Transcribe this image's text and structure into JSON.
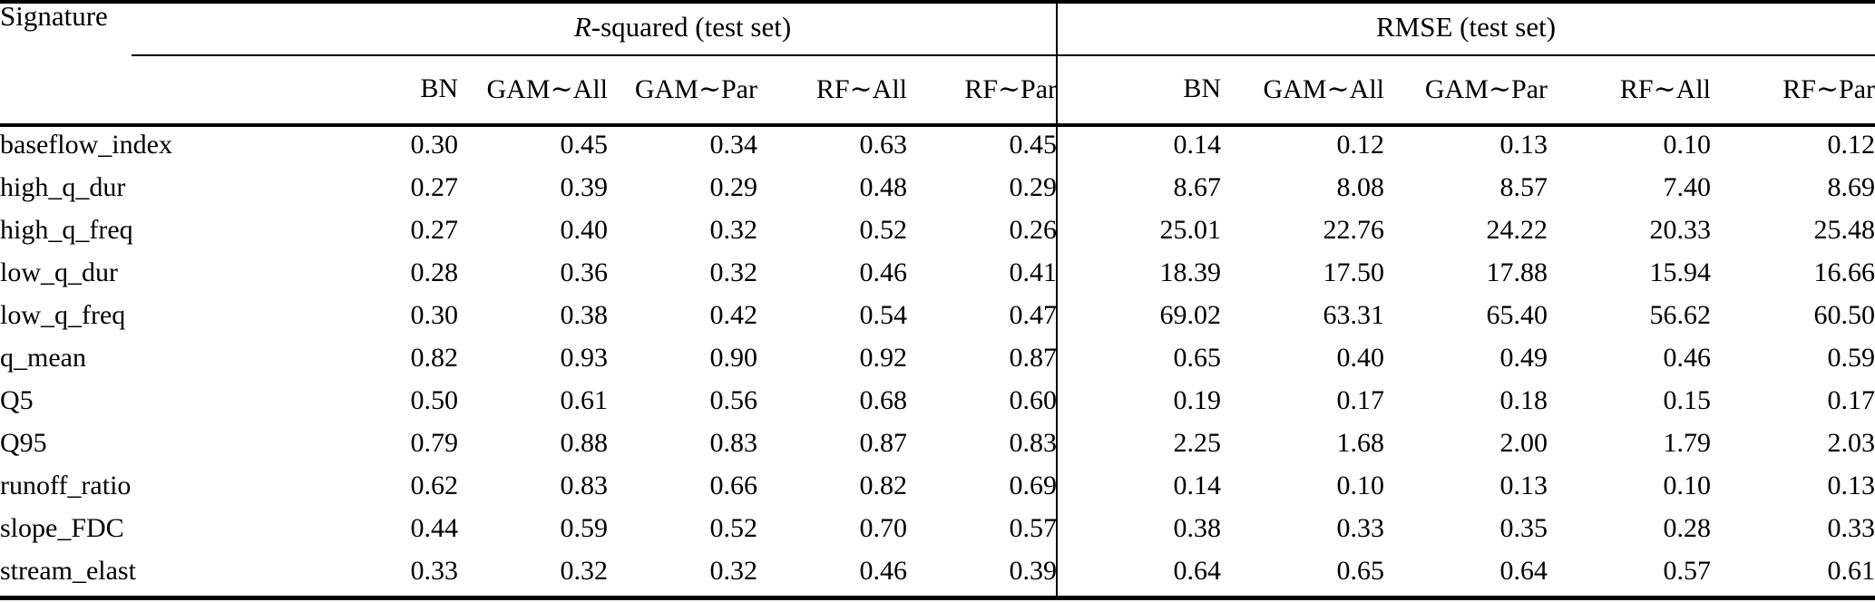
{
  "table": {
    "corner_header": "Signature",
    "groups": [
      {
        "name": "r_squared",
        "label_italic": "R",
        "label_rest": "-squared (test set)",
        "columns": [
          "BN",
          "GAM∼All",
          "GAM∼Par",
          "RF∼All",
          "RF∼Par"
        ]
      },
      {
        "name": "rmse",
        "label_italic": "",
        "label_rest": "RMSE (test set)",
        "columns": [
          "BN",
          "GAM∼All",
          "GAM∼Par",
          "RF∼All",
          "RF∼Par"
        ]
      }
    ],
    "rows": [
      {
        "signature": "baseflow_index",
        "r_squared": [
          "0.30",
          "0.45",
          "0.34",
          "0.63",
          "0.45"
        ],
        "rmse": [
          "0.14",
          "0.12",
          "0.13",
          "0.10",
          "0.12"
        ]
      },
      {
        "signature": "high_q_dur",
        "r_squared": [
          "0.27",
          "0.39",
          "0.29",
          "0.48",
          "0.29"
        ],
        "rmse": [
          "8.67",
          "8.08",
          "8.57",
          "7.40",
          "8.69"
        ]
      },
      {
        "signature": "high_q_freq",
        "r_squared": [
          "0.27",
          "0.40",
          "0.32",
          "0.52",
          "0.26"
        ],
        "rmse": [
          "25.01",
          "22.76",
          "24.22",
          "20.33",
          "25.48"
        ]
      },
      {
        "signature": "low_q_dur",
        "r_squared": [
          "0.28",
          "0.36",
          "0.32",
          "0.46",
          "0.41"
        ],
        "rmse": [
          "18.39",
          "17.50",
          "17.88",
          "15.94",
          "16.66"
        ]
      },
      {
        "signature": "low_q_freq",
        "r_squared": [
          "0.30",
          "0.38",
          "0.42",
          "0.54",
          "0.47"
        ],
        "rmse": [
          "69.02",
          "63.31",
          "65.40",
          "56.62",
          "60.50"
        ]
      },
      {
        "signature": "q_mean",
        "r_squared": [
          "0.82",
          "0.93",
          "0.90",
          "0.92",
          "0.87"
        ],
        "rmse": [
          "0.65",
          "0.40",
          "0.49",
          "0.46",
          "0.59"
        ]
      },
      {
        "signature": "Q5",
        "r_squared": [
          "0.50",
          "0.61",
          "0.56",
          "0.68",
          "0.60"
        ],
        "rmse": [
          "0.19",
          "0.17",
          "0.18",
          "0.15",
          "0.17"
        ]
      },
      {
        "signature": "Q95",
        "r_squared": [
          "0.79",
          "0.88",
          "0.83",
          "0.87",
          "0.83"
        ],
        "rmse": [
          "2.25",
          "1.68",
          "2.00",
          "1.79",
          "2.03"
        ]
      },
      {
        "signature": "runoff_ratio",
        "r_squared": [
          "0.62",
          "0.83",
          "0.66",
          "0.82",
          "0.69"
        ],
        "rmse": [
          "0.14",
          "0.10",
          "0.13",
          "0.10",
          "0.13"
        ]
      },
      {
        "signature": "slope_FDC",
        "r_squared": [
          "0.44",
          "0.59",
          "0.52",
          "0.70",
          "0.57"
        ],
        "rmse": [
          "0.38",
          "0.33",
          "0.35",
          "0.28",
          "0.33"
        ]
      },
      {
        "signature": "stream_elast",
        "r_squared": [
          "0.33",
          "0.32",
          "0.32",
          "0.46",
          "0.39"
        ],
        "rmse": [
          "0.64",
          "0.65",
          "0.64",
          "0.57",
          "0.61"
        ]
      }
    ],
    "colors": {
      "text": "#000000",
      "background": "#ffffff",
      "rule": "#000000"
    }
  }
}
